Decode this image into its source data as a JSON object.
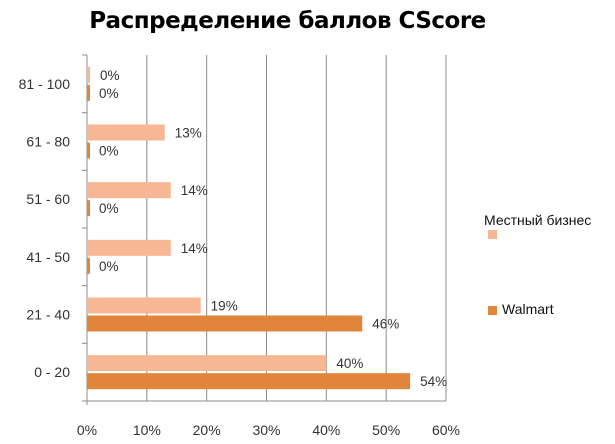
{
  "chart_data": {
    "type": "bar",
    "orientation": "horizontal",
    "title": "Распределение баллов CScore",
    "categories": [
      "81 - 100",
      "61 - 80",
      "51 - 60",
      "41 - 50",
      "21 - 40",
      "0 - 20"
    ],
    "series": [
      {
        "name": "Местный бизнес",
        "color": "#F7B694",
        "values": [
          0,
          13,
          14,
          14,
          19,
          40
        ],
        "labels": [
          "0%",
          "13%",
          "14%",
          "14%",
          "19%",
          "40%"
        ]
      },
      {
        "name": "Walmart",
        "color": "#E0853A",
        "values": [
          0,
          0,
          0,
          0,
          46,
          54
        ],
        "labels": [
          "0%",
          "0%",
          "0%",
          "0%",
          "46%",
          "54%"
        ]
      }
    ],
    "xlim": [
      0,
      60
    ],
    "x_ticks": [
      "0%",
      "10%",
      "20%",
      "30%",
      "40%",
      "50%",
      "60%"
    ],
    "grid": "vertical",
    "legend_position": "right",
    "xlabel": "",
    "ylabel": ""
  }
}
